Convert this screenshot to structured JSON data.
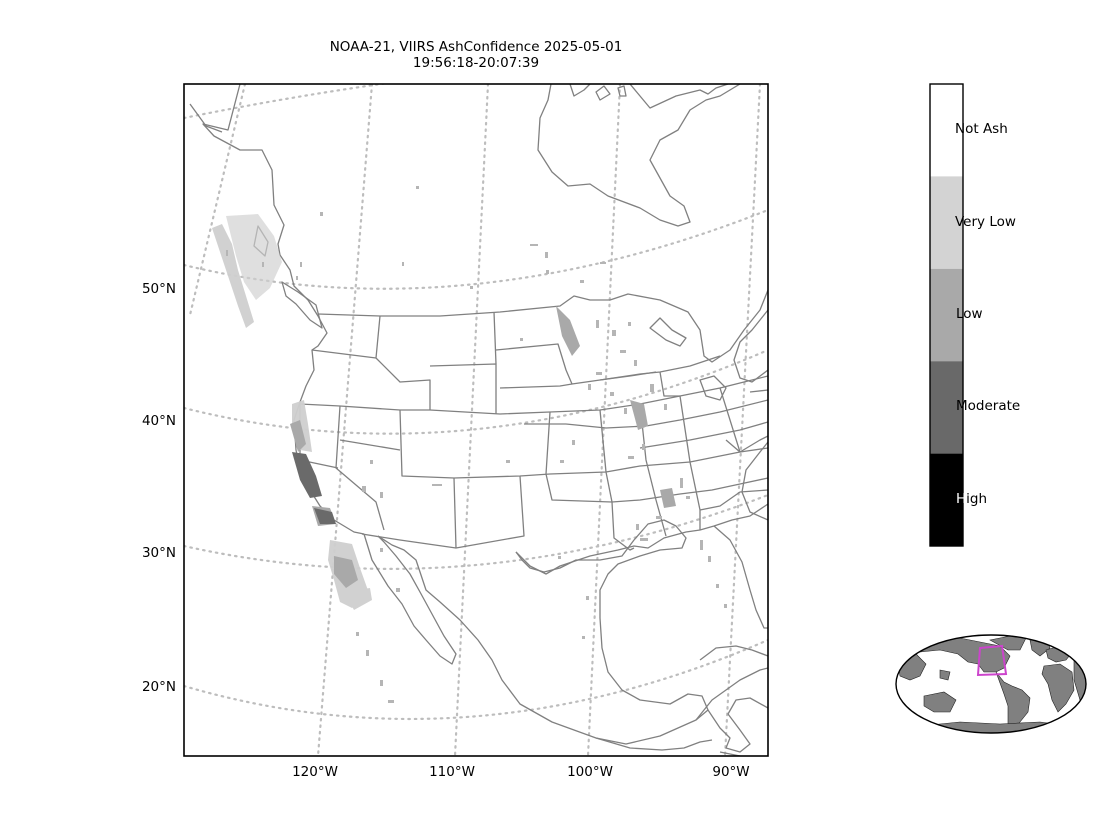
{
  "title": {
    "line1": "NOAA-21, VIIRS AshConfidence 2025-05-01",
    "line2": "19:56:18-20:07:39"
  },
  "map": {
    "lat_labels": [
      "50°N",
      "40°N",
      "30°N",
      "20°N"
    ],
    "lon_labels": [
      "120°W",
      "110°W",
      "100°W",
      "90°W"
    ],
    "graticule_style": "dotted",
    "border_color": "#808080"
  },
  "colorbar": {
    "categories": [
      {
        "label": "Not Ash",
        "color": "#ffffff"
      },
      {
        "label": "Very Low",
        "color": "#d3d3d3"
      },
      {
        "label": "Low",
        "color": "#a9a9a9"
      },
      {
        "label": "Moderate",
        "color": "#696969"
      },
      {
        "label": "High",
        "color": "#000000"
      }
    ]
  },
  "inset": {
    "land_color": "#808080",
    "highlight_color": "#cc44cc"
  }
}
